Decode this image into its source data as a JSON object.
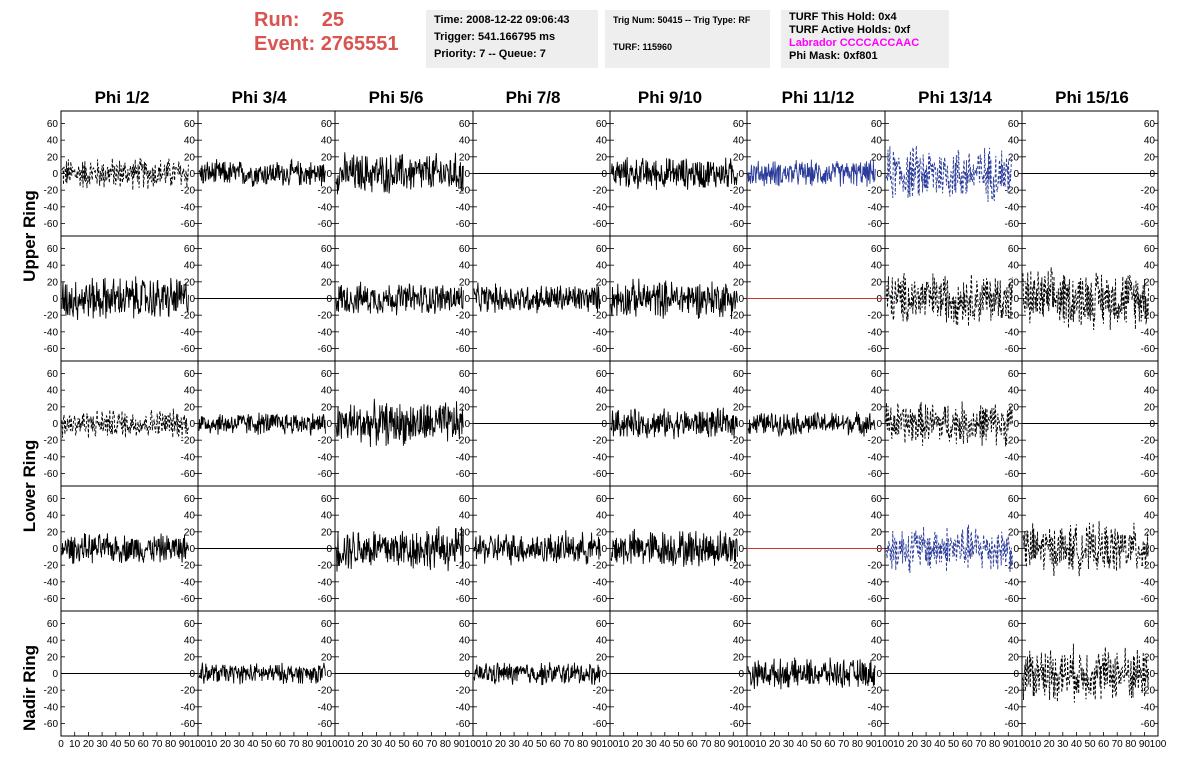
{
  "header": {
    "run_label": "Run:",
    "run_value": "25",
    "event_label": "Event:",
    "event_value": "2765551",
    "time": "Time: 2008-12-22 09:06:43",
    "trigger": "Trigger: 541.166795 ms",
    "priority": "Priority: 7 -- Queue: 7",
    "trig_num": "Trig Num: 50415 -- Trig Type: RF",
    "turf": "TURF: 115960",
    "turf_hold": "TURF This Hold: 0x4",
    "turf_active": "TURF Active Holds: 0xf",
    "labrador": "Labrador CCCCACCAAC",
    "phi_mask": "Phi Mask: 0xf801",
    "labrador_color": "#ff00ff"
  },
  "columns": [
    "Phi 1/2",
    "Phi 3/4",
    "Phi 5/6",
    "Phi 7/8",
    "Phi 9/10",
    "Phi 11/12",
    "Phi 13/14",
    "Phi 15/16"
  ],
  "rings": [
    "Upper Ring",
    "Lower Ring",
    "Nadir Ring"
  ],
  "chart_data": {
    "type": "line",
    "title": "",
    "xlabel": "",
    "ylabel": "",
    "xlim": [
      0,
      100
    ],
    "ylim": [
      -75,
      75
    ],
    "y_ticks": [
      -60,
      -40,
      -20,
      0,
      20,
      40,
      60
    ],
    "x_tick_labels": [
      "0",
      "10",
      "20",
      "30",
      "40",
      "50",
      "60",
      "70",
      "80",
      "90",
      "100"
    ],
    "x_tick_labels_short": [
      "10",
      "20",
      "30",
      "40",
      "50",
      "60",
      "70",
      "80",
      "90",
      "100"
    ],
    "colors": {
      "black": "#000000",
      "blue": "#2a3b9a",
      "red": "#cc3333"
    },
    "panels": [
      [
        {
          "style": "dashed",
          "color": "black",
          "amplitude": 22
        },
        {
          "style": "solid",
          "color": "black",
          "amplitude": 18
        },
        {
          "style": "solid",
          "color": "black",
          "amplitude": 28
        },
        {
          "style": "flat",
          "color": "black",
          "amplitude": 0
        },
        {
          "style": "solid",
          "color": "black",
          "amplitude": 22
        },
        {
          "style": "solid",
          "color": "blue",
          "amplitude": 18
        },
        {
          "style": "dashed",
          "color": "blue",
          "amplitude": 38
        },
        {
          "style": "flat",
          "color": "black",
          "amplitude": 0
        }
      ],
      [
        {
          "style": "solid",
          "color": "black",
          "amplitude": 30
        },
        {
          "style": "flat",
          "color": "black",
          "amplitude": 0
        },
        {
          "style": "solid",
          "color": "black",
          "amplitude": 22
        },
        {
          "style": "solid",
          "color": "black",
          "amplitude": 20
        },
        {
          "style": "solid",
          "color": "black",
          "amplitude": 26
        },
        {
          "style": "flat",
          "color": "red",
          "amplitude": 0
        },
        {
          "style": "dashed",
          "color": "black",
          "amplitude": 36
        },
        {
          "style": "dashed",
          "color": "black",
          "amplitude": 40
        }
      ],
      [
        {
          "style": "dashed",
          "color": "black",
          "amplitude": 20
        },
        {
          "style": "solid",
          "color": "black",
          "amplitude": 16
        },
        {
          "style": "solid",
          "color": "black",
          "amplitude": 30
        },
        {
          "style": "flat",
          "color": "black",
          "amplitude": 0
        },
        {
          "style": "solid",
          "color": "black",
          "amplitude": 20
        },
        {
          "style": "solid",
          "color": "black",
          "amplitude": 16
        },
        {
          "style": "dashed",
          "color": "black",
          "amplitude": 30
        },
        {
          "style": "flat",
          "color": "black",
          "amplitude": 0
        }
      ],
      [
        {
          "style": "solid",
          "color": "black",
          "amplitude": 20
        },
        {
          "style": "flat",
          "color": "black",
          "amplitude": 0
        },
        {
          "style": "solid",
          "color": "black",
          "amplitude": 30
        },
        {
          "style": "solid",
          "color": "black",
          "amplitude": 22
        },
        {
          "style": "solid",
          "color": "black",
          "amplitude": 26
        },
        {
          "style": "flat",
          "color": "red",
          "amplitude": 0
        },
        {
          "style": "dashed",
          "color": "blue",
          "amplitude": 32
        },
        {
          "style": "dashed",
          "color": "black",
          "amplitude": 34
        }
      ],
      [
        {
          "style": "flat",
          "color": "black",
          "amplitude": 0
        },
        {
          "style": "solid",
          "color": "black",
          "amplitude": 14
        },
        {
          "style": "flat",
          "color": "black",
          "amplitude": 0
        },
        {
          "style": "solid",
          "color": "black",
          "amplitude": 16
        },
        {
          "style": "flat",
          "color": "black",
          "amplitude": 0
        },
        {
          "style": "solid",
          "color": "black",
          "amplitude": 20
        },
        {
          "style": "flat",
          "color": "black",
          "amplitude": 0
        },
        {
          "style": "dashed",
          "color": "black",
          "amplitude": 38
        }
      ]
    ]
  }
}
